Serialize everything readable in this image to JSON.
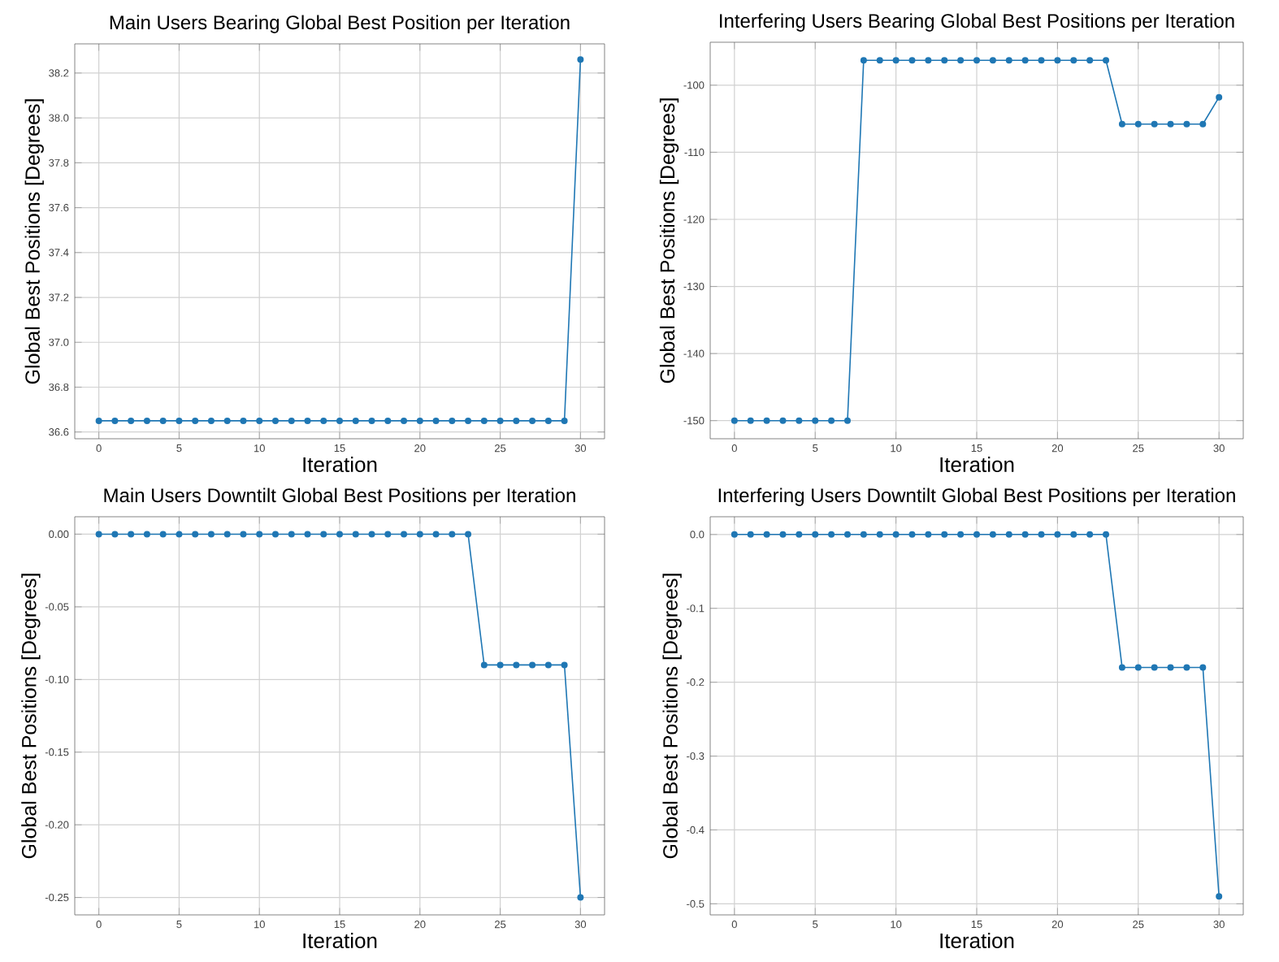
{
  "chart_data": [
    {
      "type": "line",
      "title": "Main Users Bearing Global Best Position per Iteration",
      "xlabel": "Iteration",
      "ylabel": "Global Best Positions [Degrees]",
      "x": [
        0,
        1,
        2,
        3,
        4,
        5,
        6,
        7,
        8,
        9,
        10,
        11,
        12,
        13,
        14,
        15,
        16,
        17,
        18,
        19,
        20,
        21,
        22,
        23,
        24,
        25,
        26,
        27,
        28,
        29,
        30
      ],
      "values": [
        36.65,
        36.65,
        36.65,
        36.65,
        36.65,
        36.65,
        36.65,
        36.65,
        36.65,
        36.65,
        36.65,
        36.65,
        36.65,
        36.65,
        36.65,
        36.65,
        36.65,
        36.65,
        36.65,
        36.65,
        36.65,
        36.65,
        36.65,
        36.65,
        36.65,
        36.65,
        36.65,
        36.65,
        36.65,
        36.65,
        38.26
      ],
      "color": "#1f77b4",
      "marker": "circle",
      "line_style": "solid",
      "grid": true,
      "xlim": [
        -1.5,
        31.5
      ],
      "ylim": [
        36.57,
        38.33
      ],
      "xticks": [
        0,
        5,
        10,
        15,
        20,
        25,
        30
      ],
      "yticks": [
        36.6,
        36.8,
        {
          "value": 37,
          "label": "37.0"
        },
        37.2,
        37.4,
        37.6,
        37.8,
        {
          "value": 38,
          "label": "38.0"
        },
        38.2
      ]
    },
    {
      "type": "line",
      "title": "Interfering Users Bearing Global Best Positions per Iteration",
      "xlabel": "Iteration",
      "ylabel": "Global Best Positions [Degrees]",
      "x": [
        0,
        1,
        2,
        3,
        4,
        5,
        6,
        7,
        8,
        9,
        10,
        11,
        12,
        13,
        14,
        15,
        16,
        17,
        18,
        19,
        20,
        21,
        22,
        23,
        24,
        25,
        26,
        27,
        28,
        29,
        30
      ],
      "values": [
        -150,
        -150,
        -150,
        -150,
        -150,
        -150,
        -150,
        -150,
        -96.3,
        -96.3,
        -96.3,
        -96.3,
        -96.3,
        -96.3,
        -96.3,
        -96.3,
        -96.3,
        -96.3,
        -96.3,
        -96.3,
        -96.3,
        -96.3,
        -96.3,
        -96.3,
        -105.8,
        -105.8,
        -105.8,
        -105.8,
        -105.8,
        -105.8,
        -101.8
      ],
      "color": "#1f77b4",
      "marker": "circle",
      "line_style": "solid",
      "grid": true,
      "xlim": [
        -1.5,
        31.5
      ],
      "ylim": [
        -152.7,
        -93.6
      ],
      "xticks": [
        0,
        5,
        10,
        15,
        20,
        25,
        30
      ],
      "yticks": [
        -150,
        -140,
        -130,
        -120,
        -110,
        -100
      ]
    },
    {
      "type": "line",
      "title": "Main Users Downtilt Global Best Positions per Iteration",
      "xlabel": "Iteration",
      "ylabel": "Global Best Positions [Degrees]",
      "x": [
        0,
        1,
        2,
        3,
        4,
        5,
        6,
        7,
        8,
        9,
        10,
        11,
        12,
        13,
        14,
        15,
        16,
        17,
        18,
        19,
        20,
        21,
        22,
        23,
        24,
        25,
        26,
        27,
        28,
        29,
        30
      ],
      "values": [
        0,
        0,
        0,
        0,
        0,
        0,
        0,
        0,
        0,
        0,
        0,
        0,
        0,
        0,
        0,
        0,
        0,
        0,
        0,
        0,
        0,
        0,
        0,
        0,
        -0.09,
        -0.09,
        -0.09,
        -0.09,
        -0.09,
        -0.09,
        -0.25
      ],
      "color": "#1f77b4",
      "marker": "circle",
      "line_style": "solid",
      "grid": true,
      "xlim": [
        -1.5,
        31.5
      ],
      "ylim": [
        -0.262,
        0.012
      ],
      "xticks": [
        0,
        5,
        10,
        15,
        20,
        25,
        30
      ],
      "yticks": [
        -0.25,
        {
          "value": -0.2,
          "label": "-0.20"
        },
        -0.15,
        {
          "value": -0.1,
          "label": "-0.10"
        },
        -0.05,
        {
          "value": 0,
          "label": "0.00"
        }
      ]
    },
    {
      "type": "line",
      "title": "Interfering Users Downtilt Global Best Positions per Iteration",
      "xlabel": "Iteration",
      "ylabel": "Global Best Positions [Degrees]",
      "x": [
        0,
        1,
        2,
        3,
        4,
        5,
        6,
        7,
        8,
        9,
        10,
        11,
        12,
        13,
        14,
        15,
        16,
        17,
        18,
        19,
        20,
        21,
        22,
        23,
        24,
        25,
        26,
        27,
        28,
        29,
        30
      ],
      "values": [
        0,
        0,
        0,
        0,
        0,
        0,
        0,
        0,
        0,
        0,
        0,
        0,
        0,
        0,
        0,
        0,
        0,
        0,
        0,
        0,
        0,
        0,
        0,
        0,
        -0.18,
        -0.18,
        -0.18,
        -0.18,
        -0.18,
        -0.18,
        -0.49
      ],
      "color": "#1f77b4",
      "marker": "circle",
      "line_style": "solid",
      "grid": true,
      "xlim": [
        -1.5,
        31.5
      ],
      "ylim": [
        -0.515,
        0.024
      ],
      "xticks": [
        0,
        5,
        10,
        15,
        20,
        25,
        30
      ],
      "yticks": [
        -0.5,
        -0.4,
        -0.3,
        -0.2,
        -0.1,
        {
          "value": 0,
          "label": "0.0"
        }
      ]
    }
  ]
}
